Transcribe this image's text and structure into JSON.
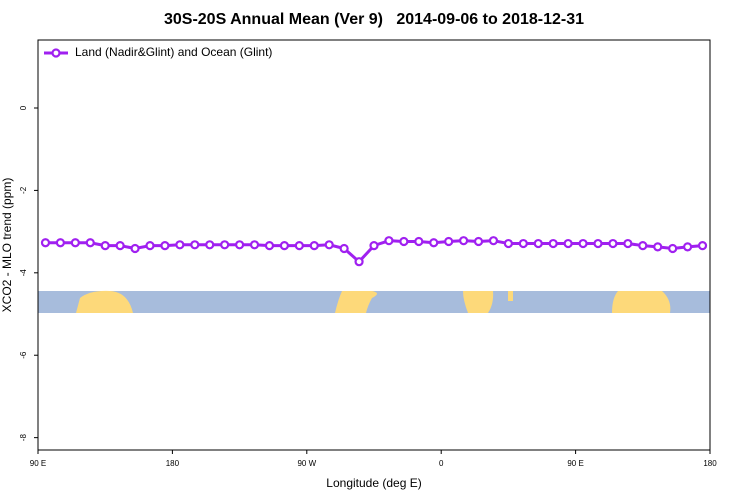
{
  "chart_data": {
    "type": "line",
    "title": "30S-20S Annual Mean (Ver 9)   2014-09-06 to 2018-12-31",
    "x_label": "Longitude (deg E)",
    "y_label": "XCO2 - MLO trend (ppm)",
    "xlim": [
      90,
      540
    ],
    "ylim": [
      -8.3,
      1.65
    ],
    "xticks": [
      {
        "value": 90,
        "label": "90 E"
      },
      {
        "value": 180,
        "label": "180"
      },
      {
        "value": 270,
        "label": "90 W"
      },
      {
        "value": 360,
        "label": "0"
      },
      {
        "value": 450,
        "label": "90 E"
      },
      {
        "value": 540,
        "label": "180"
      }
    ],
    "yticks": [
      0,
      -2,
      -4,
      -6,
      -8
    ],
    "legend": "top-left",
    "x": [
      95,
      105,
      115,
      125,
      135,
      145,
      155,
      165,
      175,
      185,
      195,
      205,
      215,
      225,
      235,
      245,
      255,
      265,
      275,
      285,
      295,
      305,
      315,
      325,
      335,
      345,
      355,
      365,
      375,
      385,
      395,
      405,
      415,
      425,
      435,
      445,
      455,
      465,
      475,
      485,
      495,
      505,
      515,
      525,
      535
    ],
    "series": [
      {
        "name": "Land (Nadir&Glint) and Ocean (Glint)",
        "color": "#a020f0",
        "values": [
          -3.27,
          -3.27,
          -3.27,
          -3.27,
          -3.34,
          -3.34,
          -3.41,
          -3.34,
          -3.34,
          -3.32,
          -3.32,
          -3.32,
          -3.32,
          -3.32,
          -3.32,
          -3.34,
          -3.34,
          -3.34,
          -3.34,
          -3.32,
          -3.41,
          -3.73,
          -3.34,
          -3.22,
          -3.24,
          -3.24,
          -3.27,
          -3.24,
          -3.22,
          -3.24,
          -3.22,
          -3.29,
          -3.29,
          -3.29,
          -3.29,
          -3.29,
          -3.29,
          -3.29,
          -3.29,
          -3.29,
          -3.34,
          -3.37,
          -3.41,
          -3.37,
          -3.34
        ]
      }
    ]
  }
}
